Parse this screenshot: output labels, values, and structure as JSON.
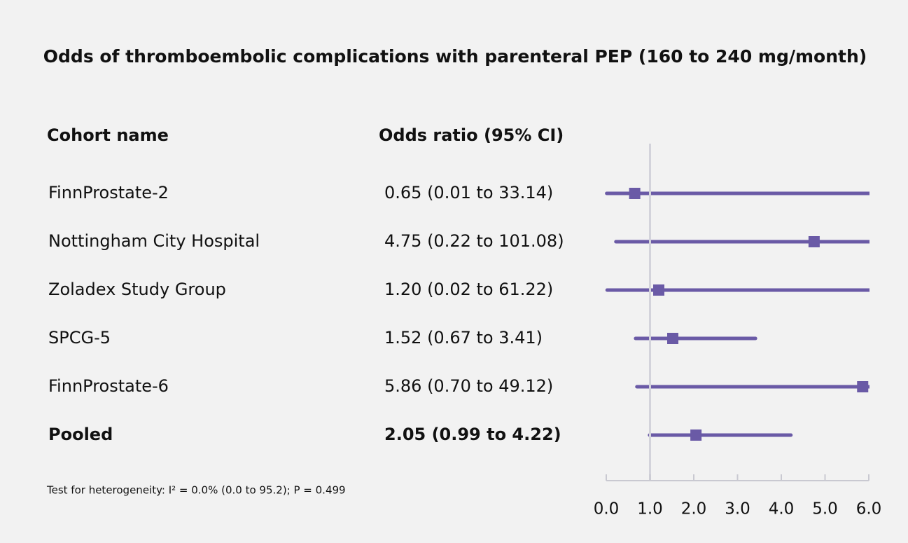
{
  "chart_data": {
    "type": "forest",
    "title": "Odds of thromboembolic complications with parenteral PEP (160 to 240 mg/month)",
    "column_headers": [
      "Cohort name",
      "Odds ratio (95% CI)"
    ],
    "categories": [
      "FinnProstate-2",
      "Nottingham City Hospital",
      "Zoladex Study Group",
      "SPCG-5",
      "FinnProstate-6",
      "Pooled"
    ],
    "values": [
      0.65,
      4.75,
      1.2,
      1.52,
      5.86,
      2.05
    ],
    "lower": [
      0.01,
      0.22,
      0.02,
      0.67,
      0.7,
      0.99
    ],
    "upper": [
      33.14,
      101.08,
      61.22,
      3.41,
      49.12,
      4.22
    ],
    "value_labels": [
      "0.65 (0.01 to 33.14)",
      "4.75 (0.22 to 101.08)",
      "1.20 (0.02 to 61.22)",
      "1.52 (0.67 to 3.41)",
      "5.86 (0.70 to 49.12)",
      "2.05 (0.99 to 4.22)"
    ],
    "bold_last_row": true,
    "color": "#6a5aa6",
    "xlim": [
      0,
      6
    ],
    "xticks": [
      {
        "value": 0,
        "label": "0.0"
      },
      {
        "value": 1,
        "label": "1.0"
      },
      {
        "value": 2,
        "label": "2.0"
      },
      {
        "value": 3,
        "label": "3.0"
      },
      {
        "value": 4,
        "label": "4.0"
      },
      {
        "value": 5,
        "label": "5.0"
      },
      {
        "value": 6,
        "label": "6.0"
      }
    ],
    "reference_line": 1,
    "note": "Test for heterogeneity: I² = 0.0% (0.0 to 95.2); P = 0.499"
  }
}
